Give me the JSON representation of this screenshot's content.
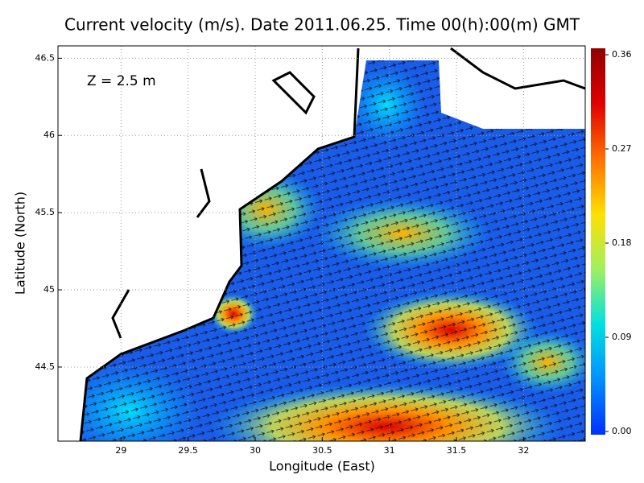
{
  "chart_data": {
    "type": "map",
    "title": "Current velocity (m/s). Date 2011.06.25. Time 00(h):00(m) GMT",
    "annotation": "Z = 2.5 m",
    "x_label": "Longitude (East)",
    "y_label": "Latitude (North)",
    "xlim": [
      28.53,
      32.46
    ],
    "xticks": [
      29,
      29.5,
      30,
      30.5,
      31,
      31.5,
      32
    ],
    "ylim": [
      44.02,
      46.58
    ],
    "yticks": [
      44.5,
      45,
      45.5,
      46,
      46.5
    ],
    "grid": true,
    "colorbar": {
      "lim": [
        0,
        0.36
      ],
      "ticks": [
        {
          "value": 0,
          "label": "0.00"
        },
        0.09,
        0.18,
        0.27,
        0.36
      ],
      "colors": [
        "#0030ff",
        "#0090ff",
        "#00e0e0",
        "#a0f060",
        "#ffe000",
        "#ff7000",
        "#e00000",
        "#900000"
      ]
    }
  }
}
